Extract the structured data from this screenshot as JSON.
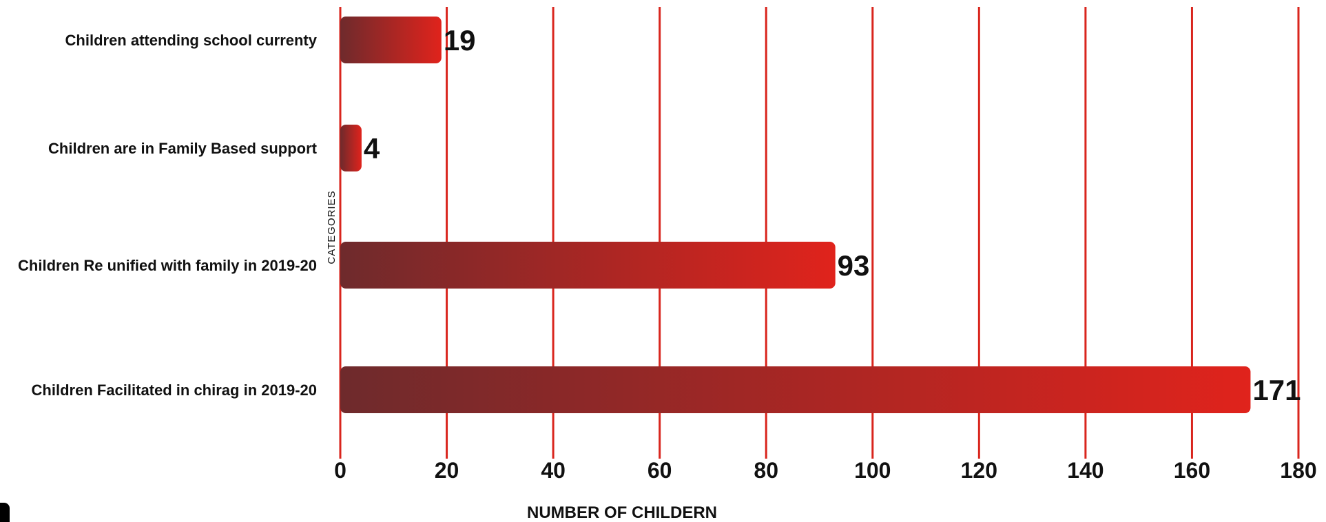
{
  "chart_data": {
    "type": "bar",
    "orientation": "horizontal",
    "categories": [
      "Children attending school currenty",
      "Children are in Family Based support",
      "Children Re unified with family in 2019-20",
      "Children Facilitated in chirag in 2019-20"
    ],
    "values": [
      19,
      4,
      93,
      171
    ],
    "xlabel": "NUMBER OF CHILDERN",
    "ylabel": "CATEGORIES",
    "xlim": [
      0,
      180
    ],
    "xticks": [
      0,
      20,
      40,
      60,
      80,
      100,
      120,
      140,
      160,
      180
    ],
    "xtick_labels": [
      "0",
      "20",
      "40",
      "60",
      "80",
      "100",
      "120",
      "140",
      "160",
      "180"
    ],
    "grid": "vertical",
    "colors": {
      "gridline": "#d9251d",
      "bar_start": "#6e2a2c",
      "bar_end": "#e0231c",
      "text": "#111111"
    }
  }
}
